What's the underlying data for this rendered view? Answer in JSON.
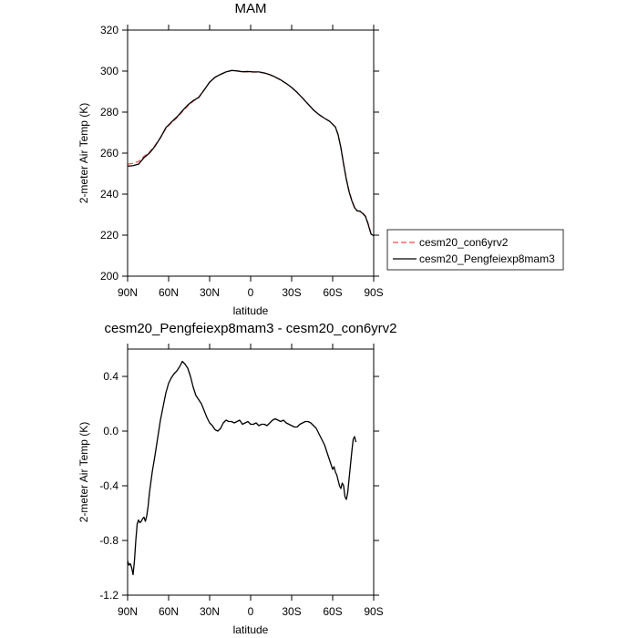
{
  "chart_data": [
    {
      "type": "line",
      "title": "MAM",
      "xlabel": "latitude",
      "ylabel": "2-meter Air Temp (K)",
      "x_ticks": [
        90,
        60,
        30,
        0,
        -30,
        -60,
        -90
      ],
      "x_tick_labels": [
        "90N",
        "60N",
        "30N",
        "0",
        "30S",
        "60S",
        "90S"
      ],
      "xlim": [
        90,
        -90
      ],
      "y_ticks": [
        200,
        220,
        240,
        260,
        280,
        300,
        320
      ],
      "y_tick_labels": [
        "200",
        "220",
        "240",
        "260",
        "280",
        "300",
        "320"
      ],
      "ylim": [
        200,
        320
      ],
      "legend": {
        "placement": "right"
      },
      "series": [
        {
          "name": "cesm20_con6yrv2",
          "color": "#e8524f",
          "dash": "dashed",
          "points": [
            [
              90,
              254.6
            ],
            [
              86,
              255.0
            ],
            [
              82,
              255.9
            ],
            [
              78,
              258.4
            ],
            [
              74,
              260.5
            ],
            [
              70,
              263.7
            ],
            [
              66,
              267.5
            ],
            [
              62,
              272.0
            ],
            [
              58,
              274.8
            ],
            [
              54,
              277.2
            ],
            [
              50,
              280.2
            ],
            [
              46,
              283.0
            ],
            [
              42,
              285.3
            ],
            [
              38,
              287.0
            ],
            [
              34,
              290.8
            ],
            [
              30,
              294.6
            ],
            [
              26,
              297.0
            ],
            [
              22,
              298.4
            ],
            [
              18,
              299.6
            ],
            [
              14,
              300.3
            ],
            [
              10,
              300.0
            ],
            [
              6,
              299.6
            ],
            [
              2,
              299.7
            ],
            [
              -2,
              299.5
            ],
            [
              -6,
              299.5
            ],
            [
              -10,
              299.0
            ],
            [
              -14,
              298.2
            ],
            [
              -18,
              297.0
            ],
            [
              -22,
              295.6
            ],
            [
              -26,
              293.9
            ],
            [
              -30,
              292.0
            ],
            [
              -34,
              289.6
            ],
            [
              -38,
              286.8
            ],
            [
              -42,
              283.9
            ],
            [
              -46,
              281.0
            ],
            [
              -50,
              278.8
            ],
            [
              -54,
              277.0
            ],
            [
              -58,
              275.4
            ],
            [
              -62,
              272.8
            ],
            [
              -64,
              269.0
            ],
            [
              -66,
              262.8
            ],
            [
              -68,
              254.8
            ],
            [
              -70,
              247.4
            ],
            [
              -72,
              241.5
            ],
            [
              -74,
              237.1
            ],
            [
              -76,
              233.6
            ],
            [
              -78,
              231.9
            ],
            [
              -80,
              231.8
            ],
            [
              -82,
              230.8
            ],
            [
              -84,
              229.3
            ],
            [
              -86,
              225.6
            ],
            [
              -88,
              220.8
            ],
            [
              -90,
              219.7
            ]
          ]
        },
        {
          "name": "cesm20_Pengfeiexp8mam3",
          "color": "#000000",
          "dash": "solid",
          "points": [
            [
              90,
              253.6
            ],
            [
              86,
              253.9
            ],
            [
              82,
              254.6
            ],
            [
              78,
              257.8
            ],
            [
              74,
              260.0
            ],
            [
              70,
              263.3
            ],
            [
              66,
              267.5
            ],
            [
              62,
              272.4
            ],
            [
              58,
              275.1
            ],
            [
              54,
              277.6
            ],
            [
              50,
              280.6
            ],
            [
              46,
              283.5
            ],
            [
              42,
              285.6
            ],
            [
              38,
              287.2
            ],
            [
              34,
              290.8
            ],
            [
              30,
              294.6
            ],
            [
              26,
              297.0
            ],
            [
              22,
              298.4
            ],
            [
              18,
              299.6
            ],
            [
              14,
              300.3
            ],
            [
              10,
              300.1
            ],
            [
              6,
              299.7
            ],
            [
              2,
              299.8
            ],
            [
              -2,
              299.6
            ],
            [
              -6,
              299.6
            ],
            [
              -10,
              299.1
            ],
            [
              -14,
              298.3
            ],
            [
              -18,
              297.1
            ],
            [
              -22,
              295.7
            ],
            [
              -26,
              294.0
            ],
            [
              -30,
              292.0
            ],
            [
              -34,
              289.6
            ],
            [
              -38,
              286.8
            ],
            [
              -42,
              283.9
            ],
            [
              -46,
              281.0
            ],
            [
              -50,
              278.8
            ],
            [
              -54,
              277.0
            ],
            [
              -58,
              275.4
            ],
            [
              -62,
              272.7
            ],
            [
              -64,
              268.9
            ],
            [
              -66,
              262.7
            ],
            [
              -68,
              254.6
            ],
            [
              -70,
              247.2
            ],
            [
              -72,
              241.2
            ],
            [
              -74,
              236.8
            ],
            [
              -76,
              233.4
            ],
            [
              -78,
              231.8
            ],
            [
              -80,
              231.6
            ],
            [
              -82,
              230.6
            ],
            [
              -84,
              229.1
            ],
            [
              -86,
              225.2
            ],
            [
              -88,
              220.6
            ],
            [
              -90,
              219.7
            ]
          ]
        }
      ]
    },
    {
      "type": "line",
      "title": "cesm20_Pengfeiexp8mam3 - cesm20_con6yrv2",
      "xlabel": "latitude",
      "ylabel": "2-meter Air Temp (K)",
      "x_ticks": [
        90,
        60,
        30,
        0,
        -30,
        -60,
        -90
      ],
      "x_tick_labels": [
        "90N",
        "60N",
        "30N",
        "0",
        "30S",
        "60S",
        "90S"
      ],
      "xlim": [
        90,
        -90
      ],
      "y_ticks": [
        -1.2,
        -0.8,
        -0.4,
        0.0,
        0.4
      ],
      "y_tick_labels": [
        "-1.2",
        "-0.8",
        "-0.4",
        "0.0",
        "0.4"
      ],
      "ylim": [
        -1.2,
        0.6
      ],
      "series": [
        {
          "color": "#000000",
          "dash": "solid",
          "points": [
            [
              90,
              -0.95
            ],
            [
              89,
              -0.98
            ],
            [
              88,
              -0.97
            ],
            [
              87,
              -1.0
            ],
            [
              86,
              -1.05
            ],
            [
              85,
              -0.95
            ],
            [
              84,
              -0.8
            ],
            [
              83,
              -0.68
            ],
            [
              82,
              -0.65
            ],
            [
              81,
              -0.67
            ],
            [
              80,
              -0.66
            ],
            [
              79,
              -0.64
            ],
            [
              78,
              -0.63
            ],
            [
              77,
              -0.66
            ],
            [
              76,
              -0.62
            ],
            [
              75,
              -0.55
            ],
            [
              74,
              -0.45
            ],
            [
              72,
              -0.3
            ],
            [
              70,
              -0.18
            ],
            [
              68,
              -0.05
            ],
            [
              66,
              0.08
            ],
            [
              64,
              0.18
            ],
            [
              62,
              0.28
            ],
            [
              60,
              0.35
            ],
            [
              58,
              0.39
            ],
            [
              56,
              0.42
            ],
            [
              54,
              0.44
            ],
            [
              52,
              0.47
            ],
            [
              50,
              0.51
            ],
            [
              48,
              0.49
            ],
            [
              46,
              0.46
            ],
            [
              44,
              0.4
            ],
            [
              42,
              0.32
            ],
            [
              40,
              0.26
            ],
            [
              38,
              0.23
            ],
            [
              36,
              0.2
            ],
            [
              34,
              0.15
            ],
            [
              32,
              0.1
            ],
            [
              30,
              0.06
            ],
            [
              28,
              0.04
            ],
            [
              26,
              0.01
            ],
            [
              24,
              0.0
            ],
            [
              22,
              0.02
            ],
            [
              20,
              0.06
            ],
            [
              18,
              0.08
            ],
            [
              16,
              0.07
            ],
            [
              14,
              0.07
            ],
            [
              12,
              0.06
            ],
            [
              10,
              0.07
            ],
            [
              8,
              0.08
            ],
            [
              6,
              0.05
            ],
            [
              4,
              0.06
            ],
            [
              2,
              0.07
            ],
            [
              0,
              0.05
            ],
            [
              -2,
              0.05
            ],
            [
              -4,
              0.06
            ],
            [
              -6,
              0.04
            ],
            [
              -8,
              0.05
            ],
            [
              -10,
              0.05
            ],
            [
              -12,
              0.04
            ],
            [
              -14,
              0.06
            ],
            [
              -16,
              0.08
            ],
            [
              -18,
              0.09
            ],
            [
              -20,
              0.08
            ],
            [
              -22,
              0.07
            ],
            [
              -24,
              0.08
            ],
            [
              -26,
              0.06
            ],
            [
              -28,
              0.05
            ],
            [
              -30,
              0.04
            ],
            [
              -32,
              0.03
            ],
            [
              -34,
              0.03
            ],
            [
              -36,
              0.05
            ],
            [
              -38,
              0.06
            ],
            [
              -40,
              0.07
            ],
            [
              -42,
              0.07
            ],
            [
              -44,
              0.06
            ],
            [
              -46,
              0.04
            ],
            [
              -48,
              0.02
            ],
            [
              -50,
              -0.02
            ],
            [
              -52,
              -0.06
            ],
            [
              -54,
              -0.1
            ],
            [
              -56,
              -0.16
            ],
            [
              -58,
              -0.22
            ],
            [
              -60,
              -0.28
            ],
            [
              -61,
              -0.26
            ],
            [
              -62,
              -0.3
            ],
            [
              -63,
              -0.32
            ],
            [
              -64,
              -0.36
            ],
            [
              -65,
              -0.4
            ],
            [
              -66,
              -0.42
            ],
            [
              -67,
              -0.38
            ],
            [
              -68,
              -0.4
            ],
            [
              -69,
              -0.48
            ],
            [
              -70,
              -0.5
            ],
            [
              -71,
              -0.45
            ],
            [
              -72,
              -0.35
            ],
            [
              -73,
              -0.25
            ],
            [
              -74,
              -0.15
            ],
            [
              -75,
              -0.06
            ],
            [
              -76,
              -0.04
            ],
            [
              -77,
              -0.08
            ]
          ]
        }
      ]
    }
  ]
}
